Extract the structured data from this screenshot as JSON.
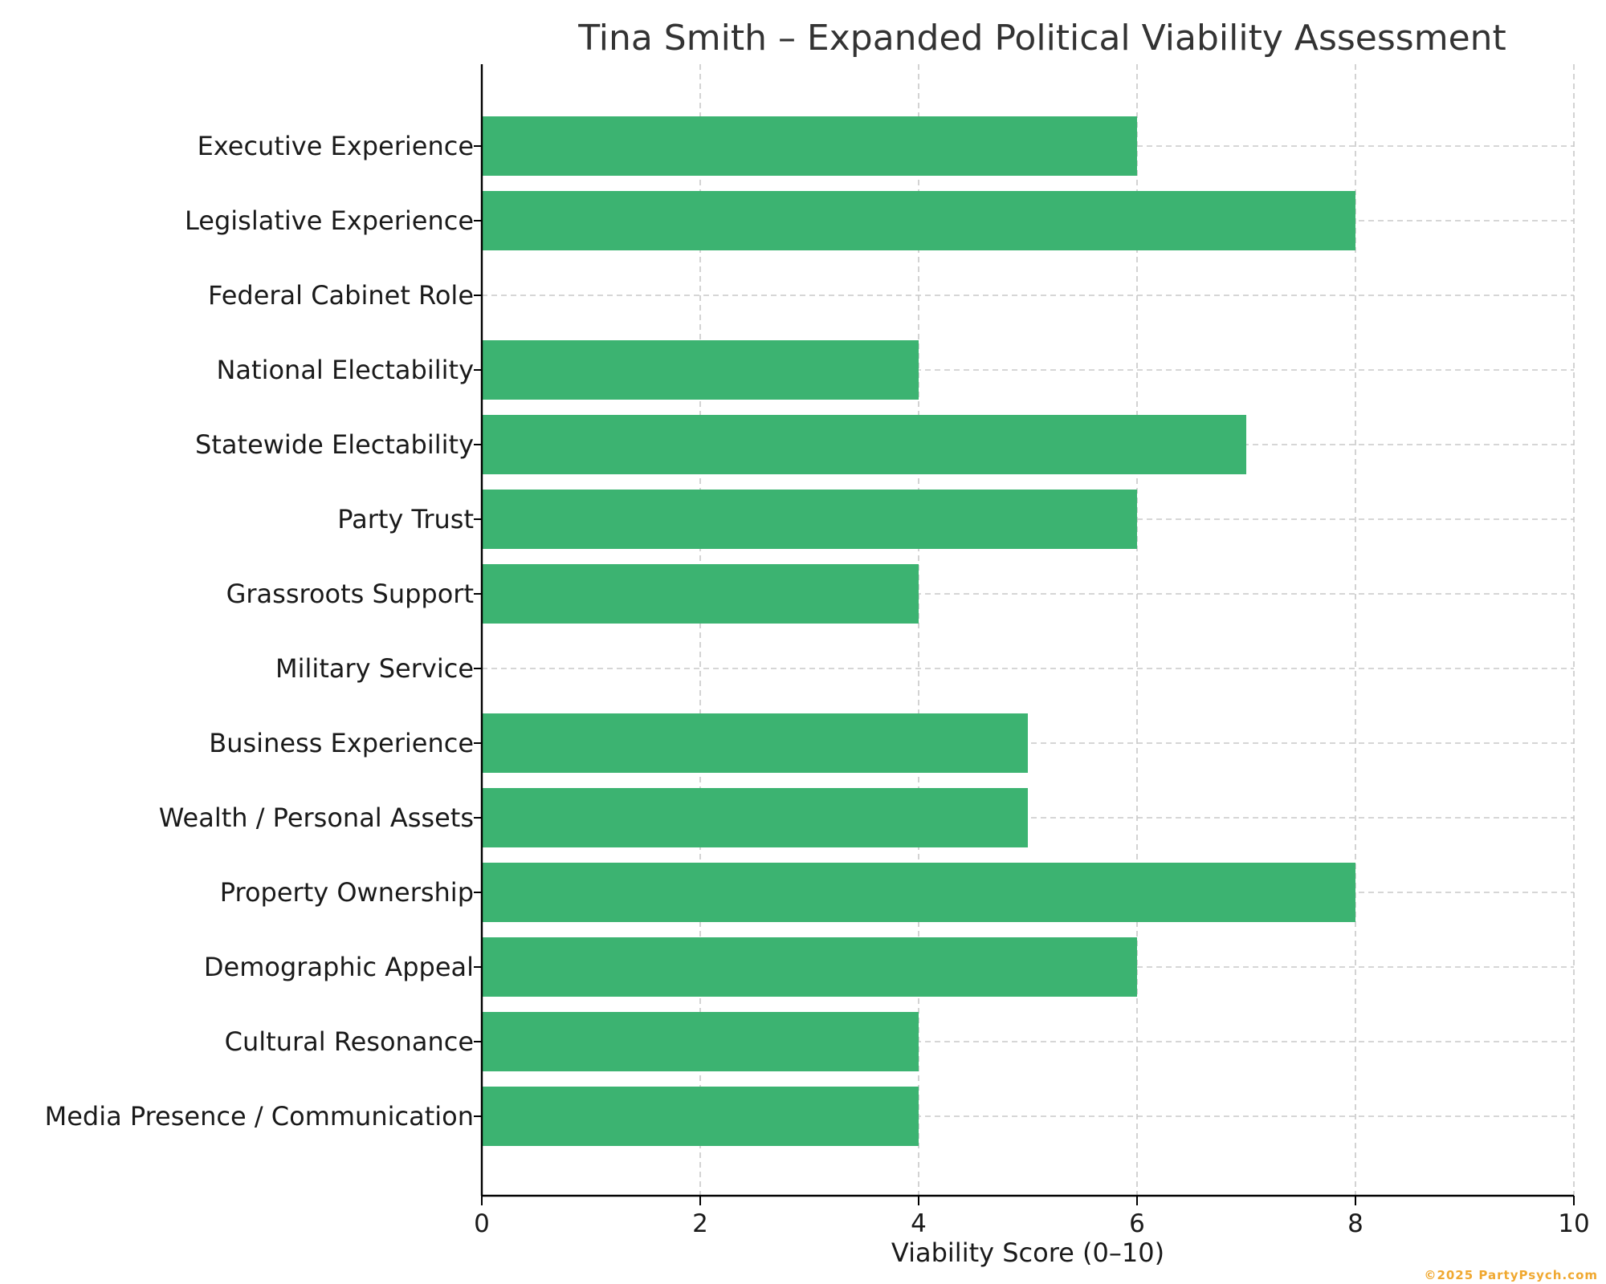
{
  "chart_data": {
    "type": "bar",
    "orientation": "horizontal",
    "title": "Tina Smith – Expanded Political Viability Assessment",
    "xlabel": "Viability Score (0–10)",
    "ylabel": "",
    "xlim": [
      0,
      10
    ],
    "xticks": [
      "0",
      "2",
      "4",
      "6",
      "8",
      "10"
    ],
    "grid": true,
    "bar_color": "#3cb371",
    "categories": [
      "Executive Experience",
      "Legislative Experience",
      "Federal Cabinet Role",
      "National Electability",
      "Statewide Electability",
      "Party Trust",
      "Grassroots Support",
      "Military Service",
      "Business Experience",
      "Wealth / Personal Assets",
      "Property Ownership",
      "Demographic Appeal",
      "Cultural Resonance",
      "Media Presence / Communication"
    ],
    "values": [
      6,
      8,
      0,
      4,
      7,
      6,
      4,
      0,
      5,
      5,
      8,
      6,
      4,
      4
    ]
  },
  "watermark": "©2025 PartyPsych.com"
}
